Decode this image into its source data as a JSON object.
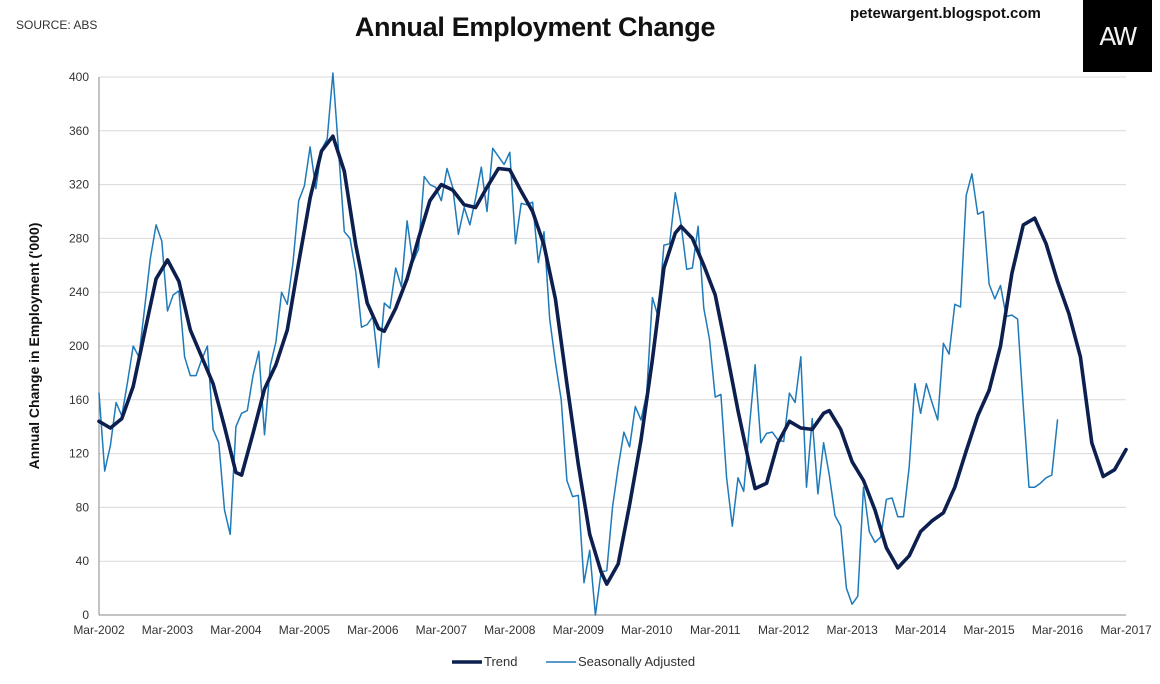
{
  "header": {
    "source": "SOURCE: ABS",
    "title": "Annual Employment Change",
    "site": "petewargent.blogspot.com",
    "logo_text": "AW"
  },
  "colors": {
    "trend": "#0c1f4f",
    "seasonally_adjusted": "#1f7ab9",
    "grid": "#d9d9d9",
    "logo_bg": "#000000"
  },
  "chart_data": {
    "type": "line",
    "title": "Annual Employment Change",
    "xlabel": "",
    "ylabel": "Annual Change in Employment ('000)",
    "ylim": [
      0,
      400
    ],
    "yticks": [
      0,
      40,
      80,
      120,
      160,
      200,
      240,
      280,
      320,
      360,
      400
    ],
    "xlim": [
      "2002-03",
      "2017-03"
    ],
    "xticks": [
      "Mar-2002",
      "Mar-2003",
      "Mar-2004",
      "Mar-2005",
      "Mar-2006",
      "Mar-2007",
      "Mar-2008",
      "Mar-2009",
      "Mar-2010",
      "Mar-2011",
      "Mar-2012",
      "Mar-2013",
      "Mar-2014",
      "Mar-2015",
      "Mar-2016",
      "Mar-2017"
    ],
    "grid": "horizontal",
    "legend_position": "bottom",
    "series": [
      {
        "name": "Trend",
        "style": "thick",
        "points": [
          [
            "2002-03",
            144
          ],
          [
            "2002-05",
            139
          ],
          [
            "2002-07",
            146
          ],
          [
            "2002-09",
            170
          ],
          [
            "2002-11",
            210
          ],
          [
            "2003-01",
            250
          ],
          [
            "2003-03",
            264
          ],
          [
            "2003-05",
            248
          ],
          [
            "2003-07",
            212
          ],
          [
            "2003-09",
            192
          ],
          [
            "2003-11",
            172
          ],
          [
            "2004-01",
            140
          ],
          [
            "2004-03",
            106
          ],
          [
            "2004-04",
            104
          ],
          [
            "2004-06",
            135
          ],
          [
            "2004-08",
            168
          ],
          [
            "2004-10",
            186
          ],
          [
            "2004-12",
            212
          ],
          [
            "2005-02",
            262
          ],
          [
            "2005-04",
            310
          ],
          [
            "2005-06",
            345
          ],
          [
            "2005-08",
            356
          ],
          [
            "2005-10",
            330
          ],
          [
            "2005-12",
            275
          ],
          [
            "2006-02",
            232
          ],
          [
            "2006-04",
            213
          ],
          [
            "2006-05",
            211
          ],
          [
            "2006-07",
            228
          ],
          [
            "2006-09",
            250
          ],
          [
            "2006-11",
            280
          ],
          [
            "2007-01",
            308
          ],
          [
            "2007-03",
            320
          ],
          [
            "2007-05",
            316
          ],
          [
            "2007-07",
            305
          ],
          [
            "2007-09",
            303
          ],
          [
            "2007-11",
            318
          ],
          [
            "2008-01",
            332
          ],
          [
            "2008-03",
            331
          ],
          [
            "2008-05",
            315
          ],
          [
            "2008-07",
            300
          ],
          [
            "2008-09",
            275
          ],
          [
            "2008-11",
            235
          ],
          [
            "2009-01",
            172
          ],
          [
            "2009-03",
            112
          ],
          [
            "2009-05",
            60
          ],
          [
            "2009-07",
            32
          ],
          [
            "2009-08",
            23
          ],
          [
            "2009-10",
            38
          ],
          [
            "2009-12",
            82
          ],
          [
            "2010-02",
            130
          ],
          [
            "2010-04",
            190
          ],
          [
            "2010-06",
            258
          ],
          [
            "2010-08",
            284
          ],
          [
            "2010-09",
            289
          ],
          [
            "2010-11",
            280
          ],
          [
            "2011-01",
            260
          ],
          [
            "2011-03",
            238
          ],
          [
            "2011-05",
            196
          ],
          [
            "2011-07",
            152
          ],
          [
            "2011-09",
            112
          ],
          [
            "2011-10",
            94
          ],
          [
            "2011-12",
            98
          ],
          [
            "2012-02",
            128
          ],
          [
            "2012-04",
            144
          ],
          [
            "2012-06",
            139
          ],
          [
            "2012-08",
            138
          ],
          [
            "2012-10",
            150
          ],
          [
            "2012-11",
            152
          ],
          [
            "2013-01",
            138
          ],
          [
            "2013-03",
            114
          ],
          [
            "2013-05",
            100
          ],
          [
            "2013-07",
            78
          ],
          [
            "2013-09",
            50
          ],
          [
            "2013-11",
            35
          ],
          [
            "2014-01",
            44
          ],
          [
            "2014-03",
            62
          ],
          [
            "2014-05",
            70
          ],
          [
            "2014-07",
            76
          ],
          [
            "2014-09",
            95
          ],
          [
            "2014-11",
            122
          ],
          [
            "2015-01",
            148
          ],
          [
            "2015-03",
            167
          ],
          [
            "2015-05",
            200
          ],
          [
            "2015-07",
            254
          ],
          [
            "2015-09",
            290
          ],
          [
            "2015-11",
            295
          ],
          [
            "2016-01",
            276
          ],
          [
            "2016-03",
            248
          ],
          [
            "2016-05",
            224
          ],
          [
            "2016-07",
            192
          ],
          [
            "2016-09",
            128
          ],
          [
            "2016-11",
            103
          ],
          [
            "2017-01",
            108
          ],
          [
            "2017-03",
            123
          ]
        ]
      },
      {
        "name": "Seasonally Adjusted",
        "style": "thin",
        "points": [
          [
            "2002-03",
            165
          ],
          [
            "2002-04",
            107
          ],
          [
            "2002-05",
            126
          ],
          [
            "2002-06",
            158
          ],
          [
            "2002-07",
            148
          ],
          [
            "2002-08",
            173
          ],
          [
            "2002-09",
            200
          ],
          [
            "2002-10",
            192
          ],
          [
            "2002-11",
            228
          ],
          [
            "2002-12",
            265
          ],
          [
            "2003-01",
            290
          ],
          [
            "2003-02",
            278
          ],
          [
            "2003-03",
            226
          ],
          [
            "2003-04",
            238
          ],
          [
            "2003-05",
            241
          ],
          [
            "2003-06",
            192
          ],
          [
            "2003-07",
            178
          ],
          [
            "2003-08",
            178
          ],
          [
            "2003-09",
            190
          ],
          [
            "2003-10",
            200
          ],
          [
            "2003-11",
            138
          ],
          [
            "2003-12",
            128
          ],
          [
            "2004-01",
            78
          ],
          [
            "2004-02",
            60
          ],
          [
            "2004-03",
            140
          ],
          [
            "2004-04",
            150
          ],
          [
            "2004-05",
            152
          ],
          [
            "2004-06",
            178
          ],
          [
            "2004-07",
            196
          ],
          [
            "2004-08",
            134
          ],
          [
            "2004-09",
            185
          ],
          [
            "2004-10",
            203
          ],
          [
            "2004-11",
            240
          ],
          [
            "2004-12",
            231
          ],
          [
            "2005-01",
            262
          ],
          [
            "2005-02",
            308
          ],
          [
            "2005-03",
            319
          ],
          [
            "2005-04",
            348
          ],
          [
            "2005-05",
            317
          ],
          [
            "2005-06",
            346
          ],
          [
            "2005-07",
            354
          ],
          [
            "2005-08",
            403
          ],
          [
            "2005-09",
            345
          ],
          [
            "2005-10",
            285
          ],
          [
            "2005-11",
            280
          ],
          [
            "2005-12",
            255
          ],
          [
            "2006-01",
            214
          ],
          [
            "2006-02",
            216
          ],
          [
            "2006-03",
            222
          ],
          [
            "2006-04",
            184
          ],
          [
            "2006-05",
            232
          ],
          [
            "2006-06",
            228
          ],
          [
            "2006-07",
            258
          ],
          [
            "2006-08",
            244
          ],
          [
            "2006-09",
            293
          ],
          [
            "2006-10",
            262
          ],
          [
            "2006-11",
            272
          ],
          [
            "2006-12",
            326
          ],
          [
            "2007-01",
            320
          ],
          [
            "2007-02",
            318
          ],
          [
            "2007-03",
            308
          ],
          [
            "2007-04",
            332
          ],
          [
            "2007-05",
            318
          ],
          [
            "2007-06",
            283
          ],
          [
            "2007-07",
            303
          ],
          [
            "2007-08",
            290
          ],
          [
            "2007-09",
            310
          ],
          [
            "2007-10",
            333
          ],
          [
            "2007-11",
            300
          ],
          [
            "2007-12",
            347
          ],
          [
            "2008-01",
            341
          ],
          [
            "2008-02",
            335
          ],
          [
            "2008-03",
            344
          ],
          [
            "2008-04",
            276
          ],
          [
            "2008-05",
            306
          ],
          [
            "2008-06",
            305
          ],
          [
            "2008-07",
            307
          ],
          [
            "2008-08",
            262
          ],
          [
            "2008-09",
            285
          ],
          [
            "2008-10",
            220
          ],
          [
            "2008-11",
            188
          ],
          [
            "2008-12",
            160
          ],
          [
            "2009-01",
            100
          ],
          [
            "2009-02",
            88
          ],
          [
            "2009-03",
            89
          ],
          [
            "2009-04",
            24
          ],
          [
            "2009-05",
            48
          ],
          [
            "2009-06",
            0
          ],
          [
            "2009-07",
            32
          ],
          [
            "2009-08",
            33
          ],
          [
            "2009-09",
            80
          ],
          [
            "2009-10",
            110
          ],
          [
            "2009-11",
            136
          ],
          [
            "2009-12",
            125
          ],
          [
            "2010-01",
            155
          ],
          [
            "2010-02",
            145
          ],
          [
            "2010-03",
            165
          ],
          [
            "2010-04",
            236
          ],
          [
            "2010-05",
            222
          ],
          [
            "2010-06",
            275
          ],
          [
            "2010-07",
            276
          ],
          [
            "2010-08",
            314
          ],
          [
            "2010-09",
            291
          ],
          [
            "2010-10",
            257
          ],
          [
            "2010-11",
            258
          ],
          [
            "2010-12",
            289
          ],
          [
            "2011-01",
            228
          ],
          [
            "2011-02",
            205
          ],
          [
            "2011-03",
            162
          ],
          [
            "2011-04",
            164
          ],
          [
            "2011-05",
            102
          ],
          [
            "2011-06",
            66
          ],
          [
            "2011-07",
            102
          ],
          [
            "2011-08",
            92
          ],
          [
            "2011-09",
            140
          ],
          [
            "2011-10",
            186
          ],
          [
            "2011-11",
            128
          ],
          [
            "2011-12",
            135
          ],
          [
            "2012-01",
            136
          ],
          [
            "2012-02",
            130
          ],
          [
            "2012-03",
            129
          ],
          [
            "2012-04",
            165
          ],
          [
            "2012-05",
            158
          ],
          [
            "2012-06",
            192
          ],
          [
            "2012-07",
            95
          ],
          [
            "2012-08",
            146
          ],
          [
            "2012-09",
            90
          ],
          [
            "2012-10",
            128
          ],
          [
            "2012-11",
            104
          ],
          [
            "2012-12",
            74
          ],
          [
            "2013-01",
            66
          ],
          [
            "2013-02",
            20
          ],
          [
            "2013-03",
            8
          ],
          [
            "2013-04",
            14
          ],
          [
            "2013-05",
            95
          ],
          [
            "2013-06",
            62
          ],
          [
            "2013-07",
            54
          ],
          [
            "2013-08",
            58
          ],
          [
            "2013-09",
            86
          ],
          [
            "2013-10",
            87
          ],
          [
            "2013-11",
            73
          ],
          [
            "2013-12",
            73
          ],
          [
            "2014-01",
            110
          ],
          [
            "2014-02",
            172
          ],
          [
            "2014-03",
            150
          ],
          [
            "2014-04",
            172
          ],
          [
            "2014-05",
            158
          ],
          [
            "2014-06",
            145
          ],
          [
            "2014-07",
            202
          ],
          [
            "2014-08",
            194
          ],
          [
            "2014-09",
            231
          ],
          [
            "2014-10",
            229
          ],
          [
            "2014-11",
            312
          ],
          [
            "2014-12",
            328
          ],
          [
            "2015-01",
            298
          ],
          [
            "2015-02",
            300
          ],
          [
            "2015-03",
            246
          ],
          [
            "2015-04",
            235
          ],
          [
            "2015-05",
            245
          ],
          [
            "2015-06",
            222
          ],
          [
            "2015-07",
            223
          ],
          [
            "2015-08",
            220
          ],
          [
            "2015-09",
            155
          ],
          [
            "2015-10",
            95
          ],
          [
            "2015-11",
            95
          ],
          [
            "2015-12",
            98
          ],
          [
            "2016-01",
            102
          ],
          [
            "2016-02",
            104
          ],
          [
            "2016-03",
            145
          ]
        ]
      }
    ]
  }
}
